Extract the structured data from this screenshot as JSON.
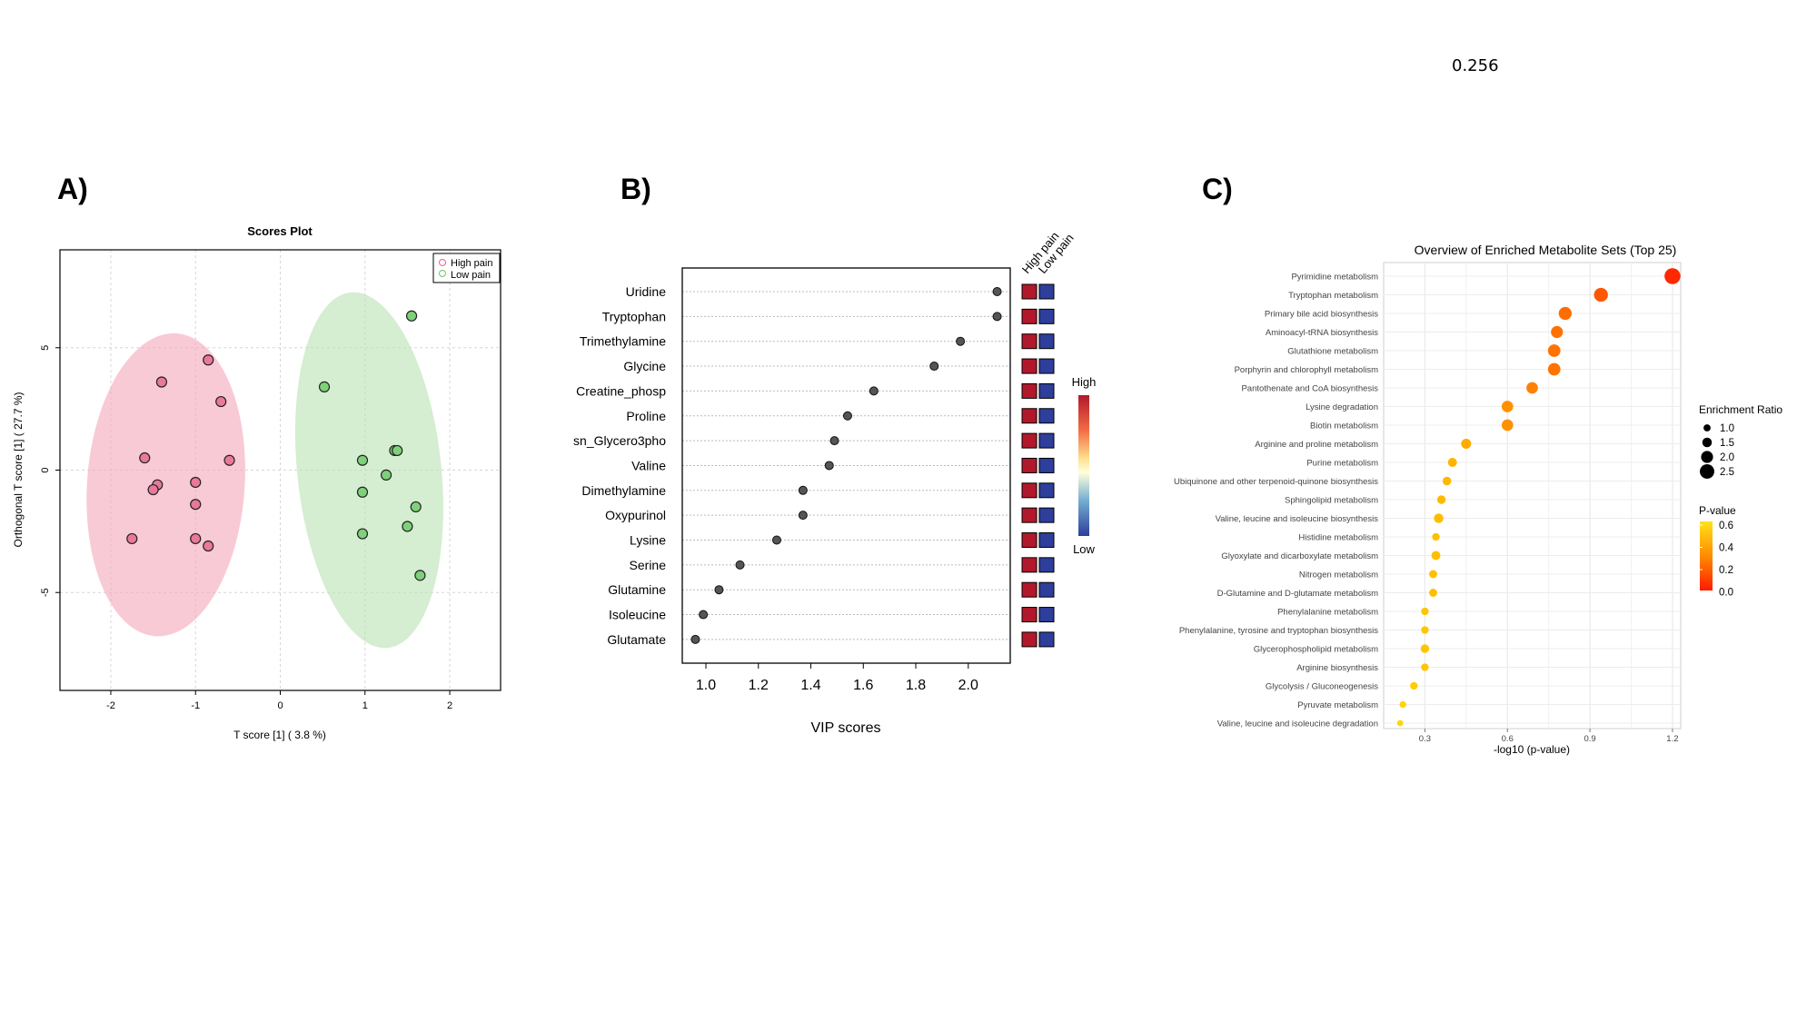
{
  "top_value": "0.256",
  "colors": {
    "high_pain_fill": "#f4a7b9",
    "high_pain_point": "#e9789c",
    "low_pain_fill": "#b9e1b3",
    "low_pain_point": "#7fd07a",
    "vip_dot": "#555555",
    "heat_high": "#b2182b",
    "heat_low": "#2d3e9b"
  },
  "panel_a": {
    "label": "A)",
    "chart_data": {
      "type": "scatter",
      "title": "Scores Plot",
      "xlabel": "T score [1] ( 3.8 %)",
      "ylabel": "Orthogonal T score [1] ( 27.7 %)",
      "xlim": [
        -2.6,
        2.6
      ],
      "ylim": [
        -9.0,
        9.0
      ],
      "xticks": [
        -2,
        -1,
        0,
        1,
        2
      ],
      "yticks": [
        5,
        0,
        -5
      ],
      "xtick_labels": [
        "-2",
        "-1",
        "0",
        "1",
        "2"
      ],
      "ytick_labels": [
        "5",
        "0",
        "-5"
      ],
      "legend": [
        "High pain",
        "Low pain"
      ],
      "legend_position": "top-right",
      "series": [
        {
          "name": "High pain",
          "points": [
            [
              -0.85,
              4.5
            ],
            [
              -1.4,
              3.6
            ],
            [
              -0.7,
              2.8
            ],
            [
              -1.6,
              0.5
            ],
            [
              -0.6,
              0.4
            ],
            [
              -1.45,
              -0.6
            ],
            [
              -1.0,
              -0.5
            ],
            [
              -1.5,
              -0.8
            ],
            [
              -1.0,
              -1.4
            ],
            [
              -1.75,
              -2.8
            ],
            [
              -1.0,
              -2.8
            ],
            [
              -0.85,
              -3.1
            ]
          ]
        },
        {
          "name": "Low pain",
          "points": [
            [
              1.55,
              6.3
            ],
            [
              0.52,
              3.4
            ],
            [
              1.35,
              0.8
            ],
            [
              1.38,
              0.8
            ],
            [
              0.97,
              0.4
            ],
            [
              1.25,
              -0.2
            ],
            [
              0.97,
              -0.9
            ],
            [
              1.6,
              -1.5
            ],
            [
              1.5,
              -2.3
            ],
            [
              0.97,
              -2.6
            ],
            [
              1.65,
              -4.3
            ]
          ]
        }
      ],
      "ellipses": [
        {
          "name": "High pain",
          "cx": -1.35,
          "cy": -0.6,
          "rx": 0.93,
          "ry": 6.2
        },
        {
          "name": "Low pain",
          "cx": 1.05,
          "cy": 0.0,
          "rx": 0.85,
          "ry": 7.3
        }
      ]
    }
  },
  "panel_b": {
    "label": "B)",
    "chart_data": {
      "type": "scatter",
      "title": "",
      "xlabel": "VIP scores",
      "ylabel": "",
      "xlim": [
        0.91,
        2.16
      ],
      "xticks": [
        1.0,
        1.2,
        1.4,
        1.6,
        1.8,
        2.0
      ],
      "xtick_labels": [
        "1.0",
        "1.2",
        "1.4",
        "1.6",
        "1.8",
        "2.0"
      ],
      "categories": [
        "Uridine",
        "Tryptophan",
        "Trimethylamine",
        "Glycine",
        "Creatine_phosp",
        "Proline",
        "sn_Glycero3pho",
        "Valine",
        "Dimethylamine",
        "Oxypurinol",
        "Lysine",
        "Serine",
        "Glutamine",
        "Isoleucine",
        "Glutamate"
      ],
      "values": [
        2.11,
        2.11,
        1.97,
        1.87,
        1.64,
        1.54,
        1.49,
        1.47,
        1.37,
        1.37,
        1.27,
        1.13,
        1.05,
        0.99,
        0.96
      ],
      "heatmap_columns": [
        "High pain",
        "Low pain"
      ],
      "heatmap_levels": {
        "High pain": [
          "High",
          "High",
          "High",
          "High",
          "High",
          "High",
          "High",
          "High",
          "High",
          "High",
          "High",
          "High",
          "High",
          "High",
          "High"
        ],
        "Low pain": [
          "Low",
          "Low",
          "Low",
          "Low",
          "Low",
          "Low",
          "Low",
          "Low",
          "Low",
          "Low",
          "Low",
          "Low",
          "Low",
          "Low",
          "Low"
        ]
      },
      "colorbar_labels": [
        "High",
        "Low"
      ]
    }
  },
  "panel_c": {
    "label": "C)",
    "chart_data": {
      "type": "scatter",
      "title": "Overview of Enriched Metabolite Sets (Top 25)",
      "xlabel": "-log10 (p-value)",
      "ylabel": "",
      "xlim": [
        0.15,
        1.23
      ],
      "xticks": [
        0.3,
        0.6,
        0.9,
        1.2
      ],
      "xtick_labels": [
        "0.3",
        "0.6",
        "0.9",
        "1.2"
      ],
      "categories": [
        "Pyrimidine metabolism",
        "Tryptophan metabolism",
        "Primary bile acid biosynthesis",
        "Aminoacyl-tRNA biosynthesis",
        "Glutathione metabolism",
        "Porphyrin and chlorophyll metabolism",
        "Pantothenate and CoA biosynthesis",
        "Lysine degradation",
        "Biotin metabolism",
        "Arginine and proline metabolism",
        "Purine metabolism",
        "Ubiquinone and other terpenoid-quinone biosynthesis",
        "Sphingolipid metabolism",
        "Valine, leucine and isoleucine biosynthesis",
        "Histidine metabolism",
        "Glyoxylate and dicarboxylate metabolism",
        "Nitrogen metabolism",
        "D-Glutamine and D-glutamate metabolism",
        "Phenylalanine metabolism",
        "Phenylalanine, tyrosine and tryptophan biosynthesis",
        "Glycerophospholipid metabolism",
        "Arginine biosynthesis",
        "Glycolysis / Gluconeogenesis",
        "Pyruvate metabolism",
        "Valine, leucine and isoleucine degradation"
      ],
      "values": [
        1.2,
        0.94,
        0.81,
        0.78,
        0.77,
        0.77,
        0.69,
        0.6,
        0.6,
        0.45,
        0.4,
        0.38,
        0.36,
        0.35,
        0.34,
        0.34,
        0.33,
        0.33,
        0.3,
        0.3,
        0.3,
        0.3,
        0.26,
        0.22,
        0.21
      ],
      "enrichment_ratio": [
        2.8,
        2.4,
        2.2,
        2.0,
        2.1,
        2.1,
        1.9,
        1.9,
        1.9,
        1.6,
        1.4,
        1.3,
        1.3,
        1.5,
        1.1,
        1.4,
        1.2,
        1.2,
        1.1,
        1.1,
        1.3,
        1.1,
        1.1,
        0.9,
        0.8
      ],
      "legend_size_title": "Enrichment Ratio",
      "legend_size_values": [
        1.0,
        1.5,
        2.0,
        2.5
      ],
      "legend_size_labels": [
        "1.0",
        "1.5",
        "2.0",
        "2.5"
      ],
      "legend_color_title": "P-value",
      "legend_color_labels": [
        "0.6",
        "0.4",
        "0.2",
        "0.0"
      ]
    }
  }
}
